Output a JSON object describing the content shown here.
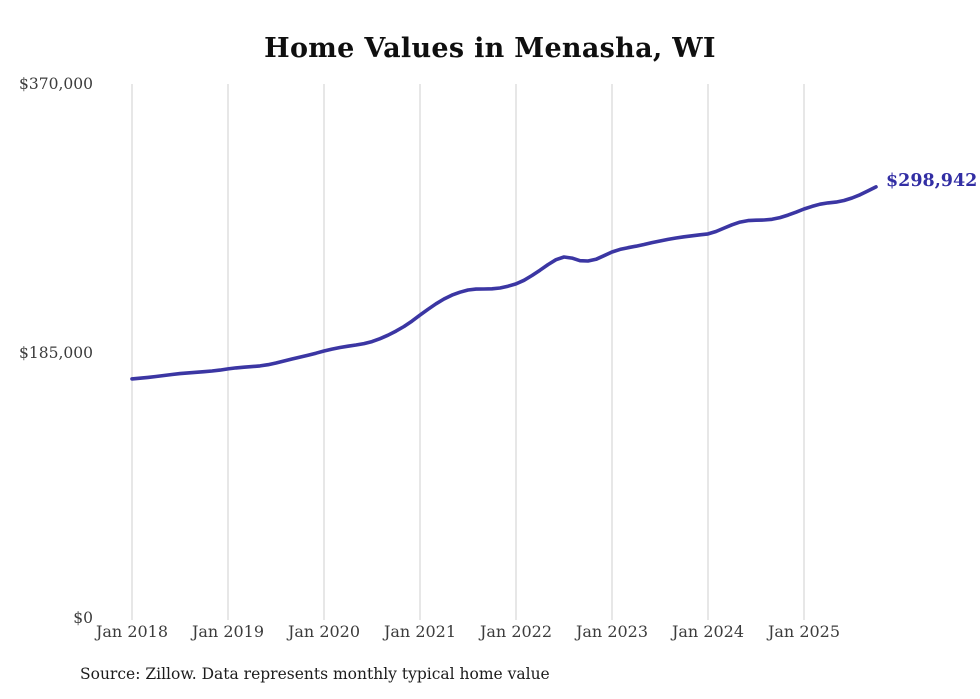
{
  "title": "Home Values in Menasha, WI",
  "source_note": "Source: Zillow. Data represents monthly typical home value",
  "current_value_label": "$298,942",
  "colors": {
    "line": "#3b36a3",
    "current_value_label": "#322ea4",
    "gridline": "#cfcfcf",
    "axis_text": "#3c3c3c",
    "title_text": "#0f0f0f",
    "source_text": "#1c1c1c",
    "background": "#ffffff"
  },
  "y_axis": {
    "tick_labels": [
      "$370,000",
      "$185,000",
      "$0"
    ],
    "min": 0,
    "max": 370000
  },
  "x_axis": {
    "tick_labels": [
      "Jan 2018",
      "Jan 2019",
      "Jan 2020",
      "Jan 2021",
      "Jan 2022",
      "Jan 2023",
      "Jan 2024",
      "Jan 2025"
    ]
  },
  "chart_data": {
    "type": "line",
    "title": "Home Values in Menasha, WI",
    "ylim": [
      0,
      370000
    ],
    "y_tick_values": [
      0,
      185000,
      370000
    ],
    "x_gridlines_at": [
      "Jan 2018",
      "Jan 2019",
      "Jan 2020",
      "Jan 2021",
      "Jan 2022",
      "Jan 2023",
      "Jan 2024",
      "Jan 2025"
    ],
    "horizontal_gridlines": false,
    "legend_position": "none",
    "final_value": 298942,
    "final_value_label": "$298,942",
    "series": [
      {
        "name": "Monthly typical home value",
        "unit": "USD",
        "frequency": "monthly",
        "start_month": "2018-01",
        "end_month": "2025-10",
        "values": [
          166400,
          166900,
          167500,
          168100,
          168800,
          169500,
          170100,
          170600,
          171000,
          171400,
          171900,
          172500,
          173300,
          174000,
          174500,
          174900,
          175400,
          176200,
          177400,
          178800,
          180200,
          181500,
          182800,
          184200,
          185700,
          187000,
          188100,
          189000,
          189800,
          190800,
          192200,
          194200,
          196600,
          199400,
          202600,
          206300,
          210500,
          214500,
          218300,
          221600,
          224300,
          226300,
          227800,
          228400,
          228500,
          228600,
          229200,
          230400,
          232000,
          234500,
          237800,
          241500,
          245300,
          248700,
          250600,
          249800,
          248000,
          247800,
          249000,
          251500,
          254000,
          255800,
          257000,
          258000,
          259200,
          260500,
          261600,
          262700,
          263700,
          264500,
          265200,
          265900,
          266500,
          268200,
          270500,
          272800,
          274700,
          275700,
          276000,
          276100,
          276600,
          277800,
          279500,
          281500,
          283700,
          285500,
          287000,
          287900,
          288500,
          289600,
          291300,
          293500,
          296200,
          298942
        ]
      }
    ]
  }
}
